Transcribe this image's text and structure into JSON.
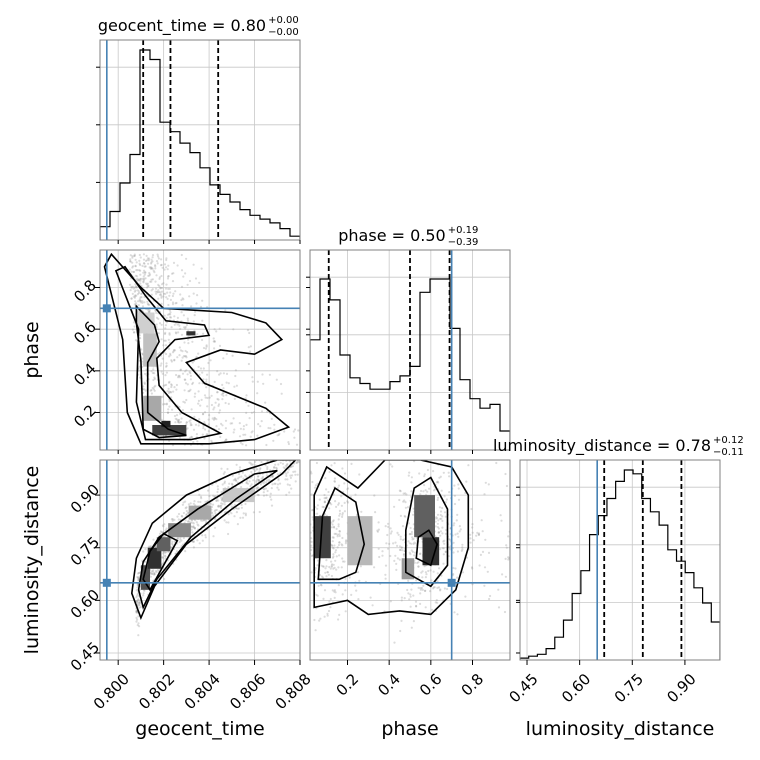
{
  "chart_data": {
    "type": "corner",
    "parameters": [
      "geocent_time",
      "phase",
      "luminosity_distance"
    ],
    "axis_labels": {
      "geocent_time": "geocent_time",
      "phase": "phase",
      "luminosity_distance": "luminosity_distance"
    },
    "titles": [
      {
        "param": "geocent_time",
        "label": "geocent_time = 0.80",
        "plus": "+0.00",
        "minus": "−0.00"
      },
      {
        "param": "phase",
        "label": "phase = 0.50",
        "plus": "+0.19",
        "minus": "−0.39"
      },
      {
        "param": "luminosity_distance",
        "label": "luminosity_distance = 0.78",
        "plus": "+0.12",
        "minus": "−0.11"
      }
    ],
    "ranges": {
      "geocent_time": [
        0.7992,
        0.808
      ],
      "phase": [
        0.02,
        0.98
      ],
      "luminosity_distance": [
        0.43,
        1.0
      ]
    },
    "ticks": {
      "geocent_time": {
        "values": [
          0.8,
          0.802,
          0.804,
          0.806,
          0.808
        ],
        "labels": [
          "0.800",
          "0.802",
          "0.804",
          "0.806",
          "0.808"
        ]
      },
      "phase": {
        "values": [
          0.2,
          0.4,
          0.6,
          0.8
        ],
        "labels": [
          "0.2",
          "0.4",
          "0.6",
          "0.8"
        ]
      },
      "luminosity_distance": {
        "values": [
          0.45,
          0.6,
          0.75,
          0.9
        ],
        "labels": [
          "0.45",
          "0.60",
          "0.75",
          "0.90"
        ]
      }
    },
    "quantiles": {
      "geocent_time": [
        0.8011,
        0.8023,
        0.8044
      ],
      "phase": [
        0.11,
        0.5,
        0.69
      ],
      "luminosity_distance": [
        0.67,
        0.78,
        0.89
      ]
    },
    "truths": {
      "geocent_time": 0.7995,
      "phase": 0.7,
      "luminosity_distance": 0.65
    },
    "histograms": {
      "geocent_time": {
        "edges_range": [
          0.7992,
          0.808
        ],
        "counts": [
          0.07,
          0.15,
          0.3,
          0.45,
          1.0,
          0.95,
          0.62,
          0.57,
          0.51,
          0.46,
          0.38,
          0.29,
          0.24,
          0.2,
          0.16,
          0.13,
          0.11,
          0.09,
          0.06,
          0.02
        ]
      },
      "phase": {
        "edges_range": [
          0.02,
          0.98
        ],
        "counts": [
          0.58,
          0.9,
          0.79,
          0.5,
          0.38,
          0.35,
          0.32,
          0.32,
          0.36,
          0.39,
          0.44,
          0.83,
          0.9,
          0.9,
          0.64,
          0.37,
          0.27,
          0.22,
          0.24,
          0.1
        ]
      },
      "luminosity_distance": {
        "edges_range": [
          0.43,
          1.0
        ],
        "counts": [
          0.01,
          0.02,
          0.03,
          0.06,
          0.12,
          0.21,
          0.35,
          0.47,
          0.66,
          0.76,
          0.85,
          0.94,
          1.0,
          0.98,
          0.85,
          0.78,
          0.71,
          0.58,
          0.52,
          0.46,
          0.38,
          0.3,
          0.2
        ]
      }
    },
    "grid": true,
    "truth_color": "#4682b4",
    "quantile_style": "dashed",
    "line_color": "#000000",
    "axis_color": "#808080",
    "grid_color": "#c8c8c8"
  }
}
